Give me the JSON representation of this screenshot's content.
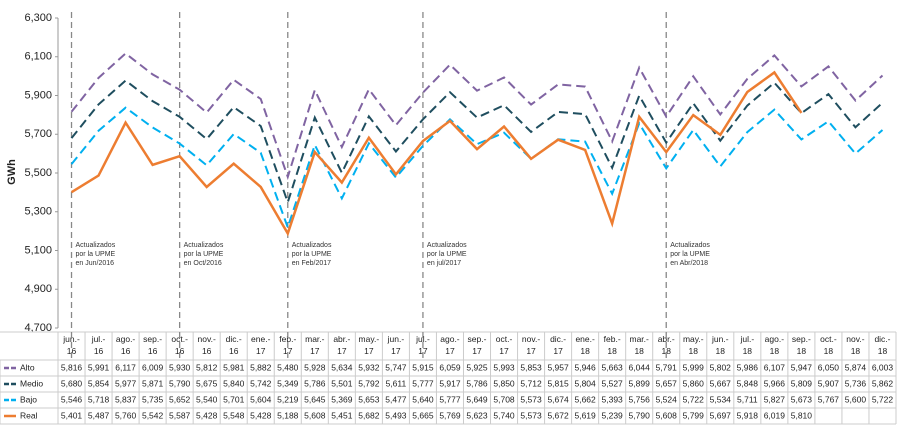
{
  "chart_data": {
    "type": "line",
    "y_label": "GWh",
    "categories": [
      "jun.- 16",
      "jul.- 16",
      "ago.- 16",
      "sep.- 16",
      "oct.- 16",
      "nov.- 16",
      "dic.- 16",
      "ene.- 17",
      "feb.- 17",
      "mar.- 17",
      "abr.- 17",
      "may.- 17",
      "jun.- 17",
      "jul.- 17",
      "ago.- 17",
      "sep.- 17",
      "oct.- 17",
      "nov.- 17",
      "dic.- 17",
      "ene.- 18",
      "feb.- 18",
      "mar.- 18",
      "abr.- 18",
      "may.- 18",
      "jun.- 18",
      "jul.- 18",
      "ago.- 18",
      "sep.- 18",
      "oct.- 18",
      "nov.- 18",
      "dic.- 18"
    ],
    "ylim": [
      4700,
      6300
    ],
    "yticks": [
      {
        "value": 4700,
        "label": "4,700"
      },
      {
        "value": 4900,
        "label": "4,900"
      },
      {
        "value": 5100,
        "label": "5,100"
      },
      {
        "value": 5300,
        "label": "5,300"
      },
      {
        "value": 5500,
        "label": "5,500"
      },
      {
        "value": 5700,
        "label": "5,700"
      },
      {
        "value": 5900,
        "label": "5,900"
      },
      {
        "value": 6100,
        "label": "6,100"
      },
      {
        "value": 6300,
        "label": "6,300"
      }
    ],
    "grid": false,
    "series": [
      {
        "name": "Alto",
        "color": "#8064a2",
        "dash": true,
        "values": [
          5816,
          5991,
          6117,
          6009,
          5930,
          5812,
          5981,
          5882,
          5480,
          5928,
          5634,
          5932,
          5747,
          5915,
          6059,
          5925,
          5993,
          5853,
          5957,
          5946,
          5663,
          6044,
          5791,
          5999,
          5802,
          5986,
          6107,
          5947,
          6050,
          5874,
          6003
        ],
        "value_labels": [
          "5,816",
          "5,991",
          "6,117",
          "6,009",
          "5,930",
          "5,812",
          "5,981",
          "5,882",
          "5,480",
          "5,928",
          "5,634",
          "5,932",
          "5,747",
          "5,915",
          "6,059",
          "5,925",
          "5,993",
          "5,853",
          "5,957",
          "5,946",
          "5,663",
          "6,044",
          "5,791",
          "5,999",
          "5,802",
          "5,986",
          "6,107",
          "5,947",
          "6,050",
          "5,874",
          "6,003"
        ]
      },
      {
        "name": "Medio",
        "color": "#1f4e5f",
        "dash": true,
        "values": [
          5680,
          5854,
          5977,
          5871,
          5790,
          5675,
          5840,
          5742,
          5349,
          5786,
          5501,
          5792,
          5611,
          5777,
          5917,
          5786,
          5850,
          5712,
          5815,
          5804,
          5527,
          5899,
          5657,
          5860,
          5667,
          5848,
          5966,
          5809,
          5907,
          5736,
          5862
        ],
        "value_labels": [
          "5,680",
          "5,854",
          "5,977",
          "5,871",
          "5,790",
          "5,675",
          "5,840",
          "5,742",
          "5,349",
          "5,786",
          "5,501",
          "5,792",
          "5,611",
          "5,777",
          "5,917",
          "5,786",
          "5,850",
          "5,712",
          "5,815",
          "5,804",
          "5,527",
          "5,899",
          "5,657",
          "5,860",
          "5,667",
          "5,848",
          "5,966",
          "5,809",
          "5,907",
          "5,736",
          "5,862"
        ]
      },
      {
        "name": "Bajo",
        "color": "#00b0f0",
        "dash": true,
        "values": [
          5546,
          5718,
          5837,
          5735,
          5652,
          5540,
          5701,
          5604,
          5219,
          5645,
          5369,
          5653,
          5477,
          5640,
          5777,
          5649,
          5708,
          5573,
          5674,
          5662,
          5393,
          5756,
          5524,
          5722,
          5534,
          5711,
          5827,
          5673,
          5767,
          5600,
          5722
        ],
        "value_labels": [
          "5,546",
          "5,718",
          "5,837",
          "5,735",
          "5,652",
          "5,540",
          "5,701",
          "5,604",
          "5,219",
          "5,645",
          "5,369",
          "5,653",
          "5,477",
          "5,640",
          "5,777",
          "5,649",
          "5,708",
          "5,573",
          "5,674",
          "5,662",
          "5,393",
          "5,756",
          "5,524",
          "5,722",
          "5,534",
          "5,711",
          "5,827",
          "5,673",
          "5,767",
          "5,600",
          "5,722"
        ]
      },
      {
        "name": "Real",
        "color": "#ed7d31",
        "dash": false,
        "values": [
          5401,
          5487,
          5760,
          5542,
          5587,
          5428,
          5548,
          5428,
          5188,
          5608,
          5451,
          5682,
          5493,
          5665,
          5769,
          5623,
          5740,
          5573,
          5672,
          5619,
          5239,
          5790,
          5608,
          5799,
          5697,
          5918,
          6019,
          5810,
          null,
          null,
          null
        ],
        "value_labels": [
          "5,401",
          "5,487",
          "5,760",
          "5,542",
          "5,587",
          "5,428",
          "5,548",
          "5,428",
          "5,188",
          "5,608",
          "5,451",
          "5,682",
          "5,493",
          "5,665",
          "5,769",
          "5,623",
          "5,740",
          "5,573",
          "5,672",
          "5,619",
          "5,239",
          "5,790",
          "5,608",
          "5,799",
          "5,697",
          "5,918",
          "6,019",
          "5,810",
          null,
          null,
          null
        ]
      }
    ],
    "annotations": [
      {
        "category": "jun.- 16",
        "lines": [
          "Actualizados",
          "por la UPME",
          "en Jun/2016"
        ]
      },
      {
        "category": "oct.- 16",
        "lines": [
          "Actualizados",
          "por la UPME",
          "en Oct/2016"
        ]
      },
      {
        "category": "feb.- 17",
        "lines": [
          "Actualizados",
          "por la UPME",
          "en Feb/2017"
        ]
      },
      {
        "category": "jul.- 17",
        "lines": [
          "Actualizados",
          "por la UPME",
          "en jul/2017"
        ]
      },
      {
        "category": "abr.- 18",
        "lines": [
          "Actualizados",
          "por la UPME",
          "en Abr/2018"
        ]
      }
    ]
  }
}
